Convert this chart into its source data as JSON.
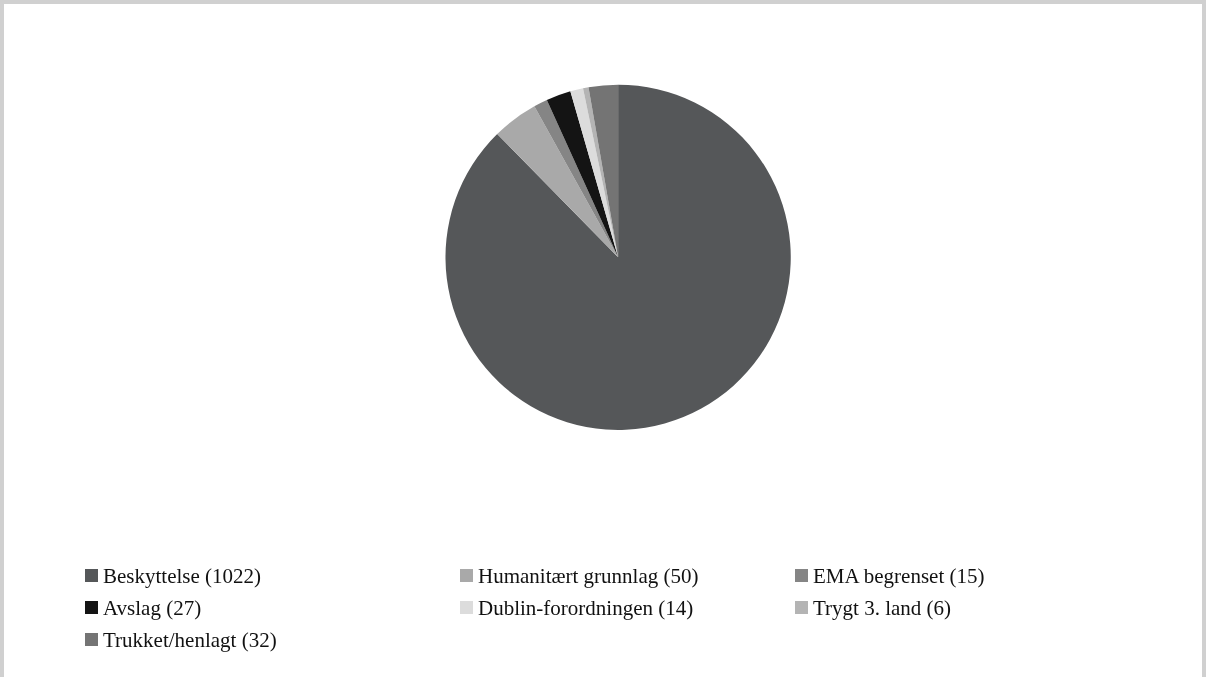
{
  "chart_data": {
    "type": "pie",
    "categories": [
      "Beskyttelse (1022)",
      "Humanitært grunnlag (50)",
      "EMA begrenset (15)",
      "Avslag (27)",
      "Dublin-forordningen (14)",
      "Trygt 3. land (6)",
      "Trukket/henlagt (32)"
    ],
    "values": [
      1022,
      50,
      15,
      27,
      14,
      6,
      32
    ],
    "colors": [
      "#555759",
      "#a9a9a9",
      "#858585",
      "#141414",
      "#dcdcdc",
      "#b4b4b4",
      "#747474"
    ],
    "legend": "bottom"
  }
}
